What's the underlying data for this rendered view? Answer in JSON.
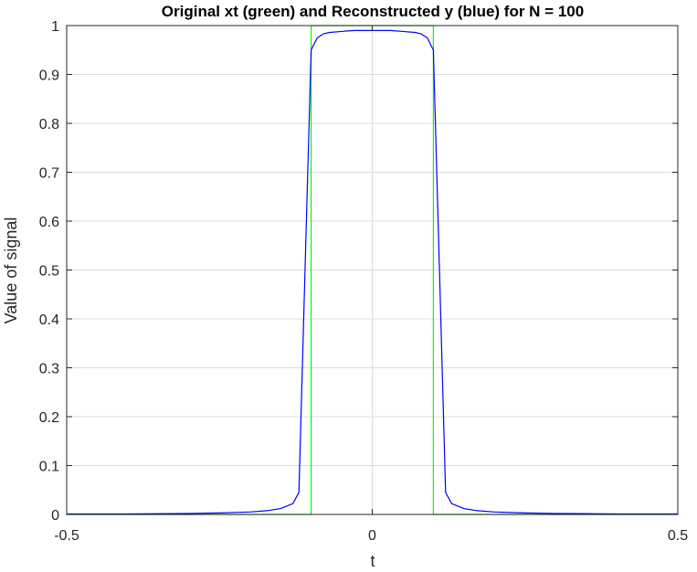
{
  "chart_data": {
    "type": "line",
    "title": "Original xt (green) and Reconstructed y (blue) for N = 100",
    "xlabel": "t",
    "ylabel": "Value of signal",
    "xlim": [
      -0.5,
      0.5
    ],
    "ylim": [
      0,
      1
    ],
    "grid": true,
    "x_ticks": [
      -0.5,
      0,
      0.5
    ],
    "x_tick_labels": [
      "-0.5",
      "0",
      "0.5"
    ],
    "y_ticks": [
      0,
      0.1,
      0.2,
      0.3,
      0.4,
      0.5,
      0.6,
      0.7,
      0.8,
      0.9,
      1
    ],
    "y_tick_labels": [
      "0",
      "0.1",
      "0.2",
      "0.3",
      "0.4",
      "0.5",
      "0.6",
      "0.7",
      "0.8",
      "0.9",
      "1"
    ],
    "series": [
      {
        "color": "#00ff00",
        "x": [
          -0.5,
          -0.1,
          -0.1,
          0.1,
          0.1,
          0.5
        ],
        "y": [
          0,
          0,
          1,
          1,
          0,
          0
        ]
      },
      {
        "color": "#0000ff",
        "x": [
          -0.5,
          -0.4,
          -0.3,
          -0.25,
          -0.2,
          -0.17,
          -0.15,
          -0.13,
          -0.12,
          -0.11,
          -0.1,
          -0.09,
          -0.08,
          -0.07,
          -0.05,
          -0.03,
          0,
          0.03,
          0.05,
          0.07,
          0.08,
          0.09,
          0.1,
          0.11,
          0.12,
          0.13,
          0.15,
          0.17,
          0.2,
          0.25,
          0.3,
          0.4,
          0.5
        ],
        "y": [
          0.001,
          0.001,
          0.002,
          0.003,
          0.005,
          0.008,
          0.012,
          0.022,
          0.045,
          0.5,
          0.95,
          0.975,
          0.983,
          0.986,
          0.988,
          0.99,
          0.99,
          0.99,
          0.988,
          0.986,
          0.983,
          0.975,
          0.95,
          0.5,
          0.045,
          0.022,
          0.012,
          0.008,
          0.005,
          0.003,
          0.002,
          0.001,
          0.001
        ]
      }
    ]
  }
}
